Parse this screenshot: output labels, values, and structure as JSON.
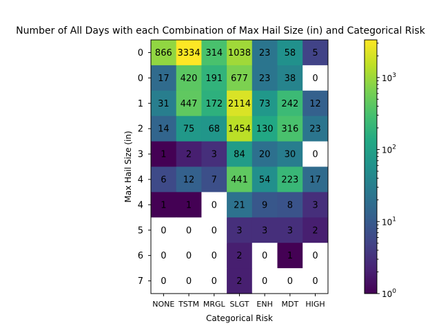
{
  "chart_data": {
    "type": "heatmap",
    "title": "Number of All Days with each Combination of Max Hail Size (in) and Categorical Risk",
    "xlabel": "Categorical Risk",
    "ylabel": "Max Hail Size (in)",
    "x_categories": [
      "NONE",
      "TSTM",
      "MRGL",
      "SLGT",
      "ENH",
      "MDT",
      "HIGH"
    ],
    "y_categories": [
      "0",
      "0",
      "1",
      "2",
      "3",
      "4",
      "4",
      "5",
      "6",
      "7"
    ],
    "values": [
      [
        866,
        3334,
        314,
        1038,
        23,
        58,
        5
      ],
      [
        17,
        420,
        191,
        677,
        23,
        38,
        0
      ],
      [
        31,
        447,
        172,
        2114,
        73,
        242,
        12
      ],
      [
        14,
        75,
        68,
        1454,
        130,
        316,
        23
      ],
      [
        1,
        2,
        3,
        84,
        20,
        30,
        0
      ],
      [
        6,
        12,
        7,
        441,
        54,
        223,
        17
      ],
      [
        1,
        1,
        0,
        21,
        9,
        8,
        3
      ],
      [
        0,
        0,
        0,
        3,
        3,
        3,
        2
      ],
      [
        0,
        0,
        0,
        2,
        0,
        1,
        0
      ],
      [
        0,
        0,
        0,
        2,
        0,
        0,
        0
      ]
    ],
    "colorbar": {
      "scale": "log",
      "colormap": "viridis",
      "range": [
        1,
        3334
      ],
      "ticks": [
        {
          "base": "10",
          "exp": "0",
          "value": 1
        },
        {
          "base": "10",
          "exp": "1",
          "value": 10
        },
        {
          "base": "10",
          "exp": "2",
          "value": 100
        },
        {
          "base": "10",
          "exp": "3",
          "value": 1000
        }
      ]
    },
    "zero_cell_color": "#ffffff",
    "grid": false
  }
}
